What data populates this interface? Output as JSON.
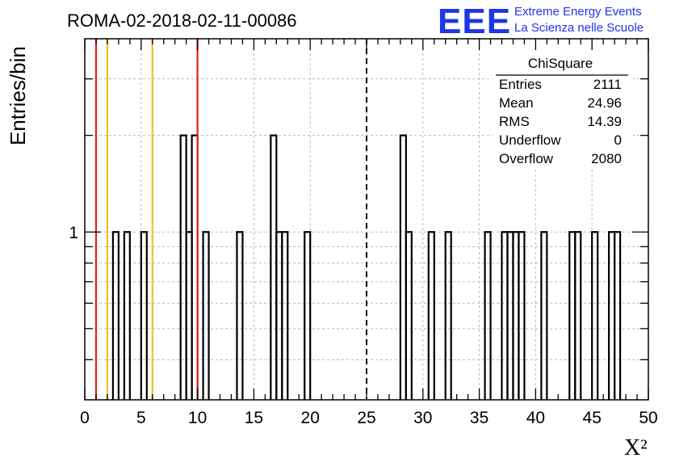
{
  "chart_data": {
    "type": "bar",
    "title": "ROMA-02-2018-02-11-00086",
    "xlabel": "X²",
    "ylabel": "Entries/bin",
    "xlim": [
      0,
      50
    ],
    "ylog": true,
    "ylim": [
      0.3,
      4
    ],
    "x_ticks": [
      "0",
      "5",
      "10",
      "15",
      "20",
      "25",
      "30",
      "35",
      "40",
      "45",
      "50"
    ],
    "y_ticks": [
      "1"
    ],
    "grid": true,
    "bin_width": 0.5,
    "bins": [
      {
        "x": 2.5,
        "count": 1
      },
      {
        "x": 3.5,
        "count": 1
      },
      {
        "x": 5.0,
        "count": 1
      },
      {
        "x": 8.5,
        "count": 2
      },
      {
        "x": 9.0,
        "count": 1
      },
      {
        "x": 9.5,
        "count": 2
      },
      {
        "x": 10.5,
        "count": 1
      },
      {
        "x": 13.5,
        "count": 1
      },
      {
        "x": 16.5,
        "count": 2
      },
      {
        "x": 17.0,
        "count": 1
      },
      {
        "x": 17.5,
        "count": 1
      },
      {
        "x": 19.5,
        "count": 1
      },
      {
        "x": 28.0,
        "count": 2
      },
      {
        "x": 28.5,
        "count": 1
      },
      {
        "x": 30.5,
        "count": 1
      },
      {
        "x": 32.0,
        "count": 1
      },
      {
        "x": 35.5,
        "count": 1
      },
      {
        "x": 37.0,
        "count": 1
      },
      {
        "x": 37.5,
        "count": 1
      },
      {
        "x": 38.0,
        "count": 1
      },
      {
        "x": 38.5,
        "count": 1
      },
      {
        "x": 40.5,
        "count": 1
      },
      {
        "x": 43.0,
        "count": 1
      },
      {
        "x": 43.5,
        "count": 1
      },
      {
        "x": 45.0,
        "count": 1
      },
      {
        "x": 46.5,
        "count": 1
      },
      {
        "x": 47.0,
        "count": 1
      }
    ],
    "vertical_lines": [
      {
        "x": 1,
        "color": "#e02020",
        "style": "solid"
      },
      {
        "x": 2,
        "color": "#f0c020",
        "style": "solid"
      },
      {
        "x": 6,
        "color": "#f0c020",
        "style": "solid"
      },
      {
        "x": 10,
        "color": "#e02020",
        "style": "solid"
      },
      {
        "x": 25,
        "color": "#000000",
        "style": "dashed"
      }
    ],
    "stats_box": {
      "title": "ChiSquare",
      "rows": [
        {
          "label": "Entries",
          "value": "2111"
        },
        {
          "label": "Mean",
          "value": "24.96"
        },
        {
          "label": "RMS",
          "value": "14.39"
        },
        {
          "label": "Underflow",
          "value": "0"
        },
        {
          "label": "Overflow",
          "value": "2080"
        }
      ]
    }
  },
  "logo": {
    "big": "EEE",
    "line1": "Extreme Energy Events",
    "line2": "La Scienza nelle Scuole",
    "color": "#1e35e8"
  }
}
